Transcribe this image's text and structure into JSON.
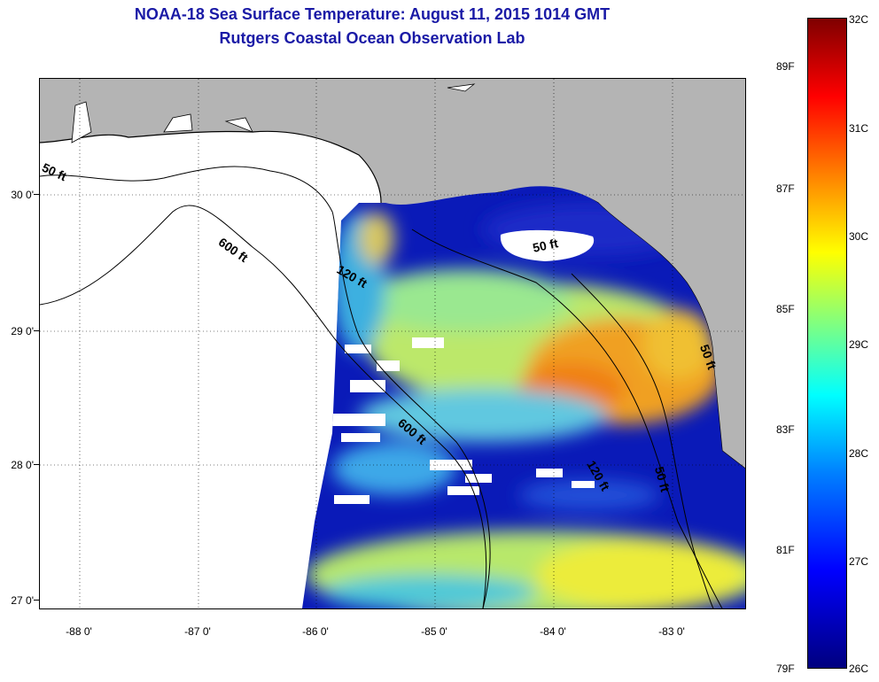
{
  "title": "NOAA-18 Sea Surface Temperature:  August 11, 2015 1014 GMT",
  "subtitle": "Rutgers Coastal Ocean Observation Lab",
  "map": {
    "latitude_labels": [
      "30 0'",
      "29 0'",
      "28 0'",
      "27 0'"
    ],
    "longitude_labels": [
      "-88 0'",
      "-87 0'",
      "-86 0'",
      "-85 0'",
      "-84 0'",
      "-83 0'"
    ],
    "land_color": "#b4b4b4",
    "cloud_color": "#ffffff",
    "depth_contours": [
      "50 ft",
      "600 ft",
      "120 ft",
      "50 ft",
      "600 ft",
      "120 ft",
      "50 ft",
      "50 ft"
    ]
  },
  "colorbar": {
    "fahrenheit_labels": [
      "89F",
      "87F",
      "85F",
      "83F",
      "81F",
      "79F"
    ],
    "celsius_labels": [
      "32C",
      "31C",
      "30C",
      "29C",
      "28C",
      "27C",
      "26C"
    ]
  }
}
